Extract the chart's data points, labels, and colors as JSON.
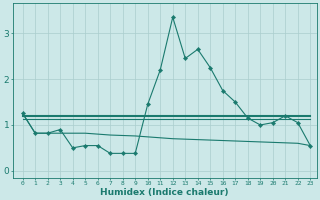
{
  "xlabel": "Humidex (Indice chaleur)",
  "x_values": [
    0,
    1,
    2,
    3,
    4,
    5,
    6,
    7,
    8,
    9,
    10,
    11,
    12,
    13,
    14,
    15,
    16,
    17,
    18,
    19,
    20,
    21,
    22,
    23
  ],
  "line1_y": [
    1.25,
    0.82,
    0.82,
    0.9,
    0.5,
    0.55,
    0.55,
    0.38,
    0.38,
    0.38,
    1.45,
    2.2,
    3.35,
    2.45,
    2.65,
    2.25,
    1.75,
    1.5,
    1.15,
    1.0,
    1.05,
    1.2,
    1.05,
    0.55
  ],
  "line2_y": [
    1.2,
    1.2,
    1.2,
    1.2,
    1.2,
    1.2,
    1.2,
    1.2,
    1.2,
    1.2,
    1.2,
    1.2,
    1.2,
    1.2,
    1.2,
    1.2,
    1.2,
    1.2,
    1.2,
    1.2,
    1.2,
    1.2,
    1.2,
    1.2
  ],
  "line3_y": [
    1.12,
    1.12,
    1.12,
    1.12,
    1.12,
    1.12,
    1.12,
    1.12,
    1.12,
    1.12,
    1.12,
    1.12,
    1.12,
    1.12,
    1.12,
    1.12,
    1.12,
    1.12,
    1.12,
    1.12,
    1.12,
    1.12,
    1.12,
    1.12
  ],
  "line4_y": [
    1.25,
    0.82,
    0.82,
    0.82,
    0.82,
    0.82,
    0.8,
    0.78,
    0.77,
    0.76,
    0.74,
    0.72,
    0.7,
    0.69,
    0.68,
    0.67,
    0.66,
    0.65,
    0.64,
    0.63,
    0.62,
    0.61,
    0.6,
    0.55
  ],
  "line1_marker_indices": [
    0,
    1,
    2,
    3,
    4,
    5,
    6,
    7,
    8,
    9,
    10,
    11,
    12,
    13,
    14,
    15,
    16,
    17,
    18,
    19,
    20,
    21,
    22,
    23
  ],
  "line_color": "#1a7a6e",
  "bg_color": "#cce8e8",
  "grid_color": "#aacece",
  "ylim": [
    -0.15,
    3.65
  ],
  "yticks": [
    0,
    1,
    2,
    3
  ],
  "xtick_labels": [
    "0",
    "1",
    "2",
    "3",
    "4",
    "5",
    "6",
    "7",
    "8",
    "9",
    "10",
    "11",
    "12",
    "13",
    "14",
    "15",
    "16",
    "17",
    "18",
    "19",
    "20",
    "21",
    "22",
    "23"
  ]
}
